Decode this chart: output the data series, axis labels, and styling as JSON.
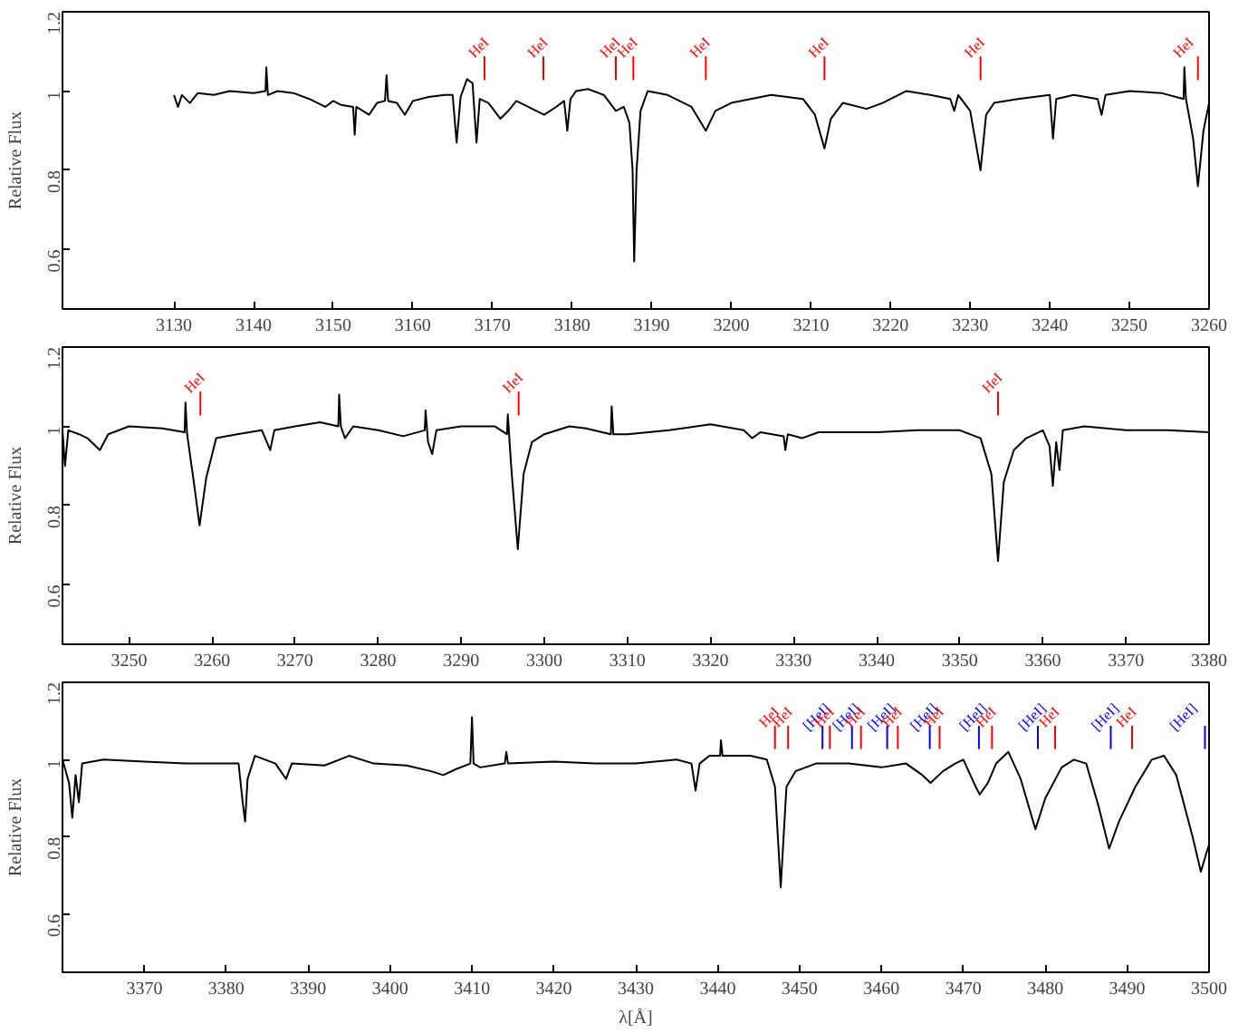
{
  "chart_data": [
    {
      "type": "line",
      "ylabel": "Relative Flux",
      "xlim": [
        3116,
        3260
      ],
      "xticks": [
        3130,
        3140,
        3150,
        3160,
        3170,
        3180,
        3190,
        3200,
        3210,
        3220,
        3230,
        3240,
        3250,
        3260
      ],
      "ylim": [
        0.45,
        1.2
      ],
      "yticks": [
        0.6,
        0.8,
        1,
        1.2
      ],
      "grid": false,
      "series": [
        {
          "color": "#000000",
          "x": [
            3130,
            3130.5,
            3131,
            3132,
            3133,
            3135,
            3137,
            3140,
            3141.5,
            3141.6,
            3141.8,
            3143,
            3145,
            3147,
            3149,
            3150,
            3151,
            3152.5,
            3152.7,
            3152.9,
            3154.5,
            3155.5,
            3156.5,
            3156.7,
            3156.9,
            3158,
            3159,
            3160,
            3162,
            3164,
            3165,
            3165.5,
            3166,
            3166.8,
            3167.5,
            3168,
            3168.4,
            3169.5,
            3171,
            3172,
            3173,
            3175,
            3176.5,
            3178,
            3179,
            3179.4,
            3179.8,
            3180.5,
            3182,
            3184,
            3185.5,
            3186.5,
            3187.2,
            3187.6,
            3187.8,
            3188.1,
            3188.6,
            3189.5,
            3192,
            3195,
            3196.8,
            3198,
            3200,
            3205,
            3209,
            3210.5,
            3211.7,
            3212.5,
            3214,
            3217,
            3219,
            3222,
            3225,
            3227.5,
            3228,
            3228.5,
            3230,
            3231.3,
            3232,
            3233,
            3236,
            3240,
            3240.4,
            3240.8,
            3243,
            3246,
            3246.5,
            3247,
            3250,
            3254,
            3256.8,
            3256.9,
            3257.1,
            3258,
            3258.6,
            3259.3,
            3260
          ],
          "values": [
            0.99,
            0.96,
            0.99,
            0.97,
            0.995,
            0.99,
            1.0,
            0.995,
            1.0,
            1.06,
            0.99,
            1.0,
            0.995,
            0.98,
            0.96,
            0.975,
            0.965,
            0.96,
            0.89,
            0.96,
            0.94,
            0.97,
            0.975,
            1.04,
            0.975,
            0.97,
            0.94,
            0.975,
            0.985,
            0.99,
            0.99,
            0.87,
            0.985,
            1.03,
            1.02,
            0.87,
            0.98,
            0.97,
            0.93,
            0.95,
            0.975,
            0.955,
            0.94,
            0.96,
            0.975,
            0.9,
            0.98,
            1.0,
            1.005,
            0.99,
            0.95,
            0.96,
            0.92,
            0.8,
            0.57,
            0.8,
            0.95,
            1.0,
            0.99,
            0.96,
            0.9,
            0.95,
            0.97,
            0.99,
            0.98,
            0.94,
            0.855,
            0.93,
            0.97,
            0.955,
            0.97,
            1.0,
            0.99,
            0.98,
            0.95,
            0.99,
            0.95,
            0.8,
            0.94,
            0.97,
            0.98,
            0.99,
            0.88,
            0.98,
            0.99,
            0.98,
            0.94,
            0.99,
            1.0,
            0.995,
            0.98,
            1.06,
            0.98,
            0.88,
            0.76,
            0.9,
            0.97
          ]
        }
      ],
      "ref_lines": [
        {
          "axis": "x",
          "value": 3169,
          "label": "HeI",
          "color": "#ff0000"
        },
        {
          "axis": "x",
          "value": 3176.4,
          "label": "HeI",
          "color": "#ff0000"
        },
        {
          "axis": "x",
          "value": 3185.5,
          "label": "HeI",
          "color": "#ff0000"
        },
        {
          "axis": "x",
          "value": 3187.7,
          "label": "HeI",
          "color": "#ff0000"
        },
        {
          "axis": "x",
          "value": 3196.8,
          "label": "HeI",
          "color": "#ff0000"
        },
        {
          "axis": "x",
          "value": 3211.7,
          "label": "HeI",
          "color": "#ff0000"
        },
        {
          "axis": "x",
          "value": 3231.3,
          "label": "HeI",
          "color": "#ff0000"
        },
        {
          "axis": "x",
          "value": 3258.6,
          "label": "HeI",
          "color": "#ff0000"
        }
      ]
    },
    {
      "type": "line",
      "ylabel": "Relative Flux",
      "xlim": [
        3242,
        3380
      ],
      "xticks": [
        3250,
        3260,
        3270,
        3280,
        3290,
        3300,
        3310,
        3320,
        3330,
        3340,
        3350,
        3360,
        3370,
        3380
      ],
      "ylim": [
        0.45,
        1.2
      ],
      "yticks": [
        0.6,
        0.8,
        1,
        1.2
      ],
      "grid": false,
      "series": [
        {
          "color": "#000000",
          "x": [
            3242,
            3242.3,
            3242.7,
            3244,
            3245,
            3246.5,
            3247.5,
            3250,
            3254,
            3256.7,
            3256.8,
            3257,
            3257.8,
            3258.5,
            3259.3,
            3260.5,
            3263,
            3266,
            3267,
            3267.5,
            3270,
            3273,
            3275.2,
            3275.3,
            3275.5,
            3276,
            3277,
            3280,
            3283,
            3285.6,
            3285.7,
            3286,
            3286.5,
            3287,
            3290,
            3294,
            3295.5,
            3295.6,
            3296,
            3296.8,
            3297.5,
            3298.5,
            3300,
            3303,
            3305,
            3308,
            3308.1,
            3308.3,
            3310,
            3315,
            3320,
            3324,
            3325,
            3326,
            3328.8,
            3329,
            3329.3,
            3331,
            3333,
            3340,
            3345,
            3350,
            3352.5,
            3353.8,
            3354.6,
            3355.3,
            3356.5,
            3358,
            3360,
            3360.8,
            3361.2,
            3361.6,
            3362,
            3362.4,
            3365,
            3370,
            3375,
            3380
          ],
          "values": [
            0.99,
            0.9,
            0.99,
            0.98,
            0.97,
            0.94,
            0.98,
            1.0,
            0.995,
            0.985,
            1.06,
            0.98,
            0.86,
            0.75,
            0.87,
            0.97,
            0.98,
            0.99,
            0.94,
            0.99,
            1.0,
            1.01,
            1.0,
            1.08,
            1.0,
            0.97,
            1.0,
            0.99,
            0.975,
            0.99,
            1.04,
            0.96,
            0.93,
            0.99,
            1.0,
            1.0,
            0.98,
            1.03,
            0.9,
            0.69,
            0.88,
            0.96,
            0.98,
            1.0,
            0.995,
            0.98,
            1.05,
            0.98,
            0.98,
            0.99,
            1.005,
            0.99,
            0.97,
            0.985,
            0.975,
            0.94,
            0.98,
            0.97,
            0.985,
            0.985,
            0.99,
            0.99,
            0.97,
            0.88,
            0.66,
            0.86,
            0.94,
            0.97,
            0.99,
            0.95,
            0.85,
            0.96,
            0.89,
            0.99,
            1.0,
            0.99,
            0.99,
            0.985
          ]
        }
      ],
      "ref_lines": [
        {
          "axis": "x",
          "value": 3258.6,
          "label": "HeI",
          "color": "#ff0000"
        },
        {
          "axis": "x",
          "value": 3296.9,
          "label": "HeI",
          "color": "#ff0000"
        },
        {
          "axis": "x",
          "value": 3354.6,
          "label": "HeI",
          "color": "#ff0000"
        }
      ]
    },
    {
      "type": "line",
      "ylabel": "Relative Flux",
      "xlabel": "λ[Å]",
      "xlim": [
        3360,
        3500
      ],
      "xticks": [
        3370,
        3380,
        3390,
        3400,
        3410,
        3420,
        3430,
        3440,
        3450,
        3460,
        3470,
        3480,
        3490,
        3500
      ],
      "ylim": [
        0.45,
        1.2
      ],
      "yticks": [
        0.6,
        0.8,
        1,
        1.2
      ],
      "grid": false,
      "series": [
        {
          "color": "#000000",
          "x": [
            3360,
            3360.8,
            3361.2,
            3361.6,
            3362,
            3362.4,
            3365,
            3370,
            3375,
            3380,
            3381.5,
            3382,
            3382.3,
            3382.6,
            3383.5,
            3386,
            3387.3,
            3388,
            3392,
            3395,
            3398,
            3402,
            3405,
            3406.5,
            3408,
            3409.8,
            3410,
            3410.2,
            3411,
            3414,
            3414.2,
            3414.4,
            3420,
            3425,
            3430,
            3435,
            3436.8,
            3437.3,
            3437.8,
            3439,
            3440.3,
            3440.4,
            3440.6,
            3444,
            3446,
            3447,
            3447.7,
            3448.4,
            3449.5,
            3452,
            3456,
            3460,
            3463,
            3465,
            3466,
            3467.5,
            3469,
            3470,
            3471.5,
            3472,
            3473,
            3474,
            3475.5,
            3477,
            3478.8,
            3480,
            3482,
            3483.5,
            3485,
            3486.5,
            3487.8,
            3489,
            3491,
            3493,
            3494.5,
            3496,
            3498,
            3499,
            3499.7,
            3500
          ],
          "values": [
            1.0,
            0.94,
            0.85,
            0.96,
            0.89,
            0.99,
            1.0,
            0.995,
            0.99,
            0.99,
            0.99,
            0.89,
            0.84,
            0.95,
            1.01,
            0.99,
            0.95,
            0.99,
            0.985,
            1.01,
            0.99,
            0.985,
            0.97,
            0.96,
            0.975,
            0.99,
            1.11,
            0.99,
            0.98,
            0.99,
            1.02,
            0.99,
            0.995,
            0.99,
            0.99,
            1.0,
            0.99,
            0.92,
            0.99,
            1.01,
            1.01,
            1.05,
            1.01,
            1.01,
            1.0,
            0.93,
            0.67,
            0.93,
            0.97,
            0.99,
            0.99,
            0.98,
            0.99,
            0.96,
            0.94,
            0.97,
            0.99,
            1.0,
            0.93,
            0.91,
            0.94,
            0.99,
            1.02,
            0.95,
            0.82,
            0.9,
            0.98,
            1.0,
            0.99,
            0.88,
            0.77,
            0.84,
            0.93,
            1.0,
            1.01,
            0.96,
            0.8,
            0.71,
            0.76,
            0.78
          ]
        }
      ],
      "ref_lines": [
        {
          "axis": "x",
          "value": 3447.0,
          "label": "HeI",
          "color": "#ff0000"
        },
        {
          "axis": "x",
          "value": 3448.6,
          "label": "HeI",
          "color": "#ff0000"
        },
        {
          "axis": "x",
          "value": 3452.8,
          "label": "[HeI]",
          "color": "#0000ff"
        },
        {
          "axis": "x",
          "value": 3453.7,
          "label": "HeI",
          "color": "#ff0000"
        },
        {
          "axis": "x",
          "value": 3456.4,
          "label": "[HeI]",
          "color": "#0000ff"
        },
        {
          "axis": "x",
          "value": 3457.5,
          "label": "HeI",
          "color": "#ff0000"
        },
        {
          "axis": "x",
          "value": 3460.7,
          "label": "[HeI]",
          "color": "#0000ff"
        },
        {
          "axis": "x",
          "value": 3462.0,
          "label": "HeI",
          "color": "#ff0000"
        },
        {
          "axis": "x",
          "value": 3465.9,
          "label": "[HeI]",
          "color": "#0000ff"
        },
        {
          "axis": "x",
          "value": 3467.1,
          "label": "HeI",
          "color": "#ff0000"
        },
        {
          "axis": "x",
          "value": 3471.9,
          "label": "[HeI]",
          "color": "#0000ff"
        },
        {
          "axis": "x",
          "value": 3473.5,
          "label": "HeI",
          "color": "#ff0000"
        },
        {
          "axis": "x",
          "value": 3479.1,
          "label": "[HeI]",
          "color": "#0000ff"
        },
        {
          "axis": "x",
          "value": 3481.2,
          "label": "HeI",
          "color": "#ff0000"
        },
        {
          "axis": "x",
          "value": 3488.0,
          "label": "[HeI]",
          "color": "#0000ff"
        },
        {
          "axis": "x",
          "value": 3490.6,
          "label": "HeI",
          "color": "#ff0000"
        },
        {
          "axis": "x",
          "value": 3499.5,
          "label": "[HeI]",
          "color": "#0000ff"
        }
      ]
    }
  ]
}
